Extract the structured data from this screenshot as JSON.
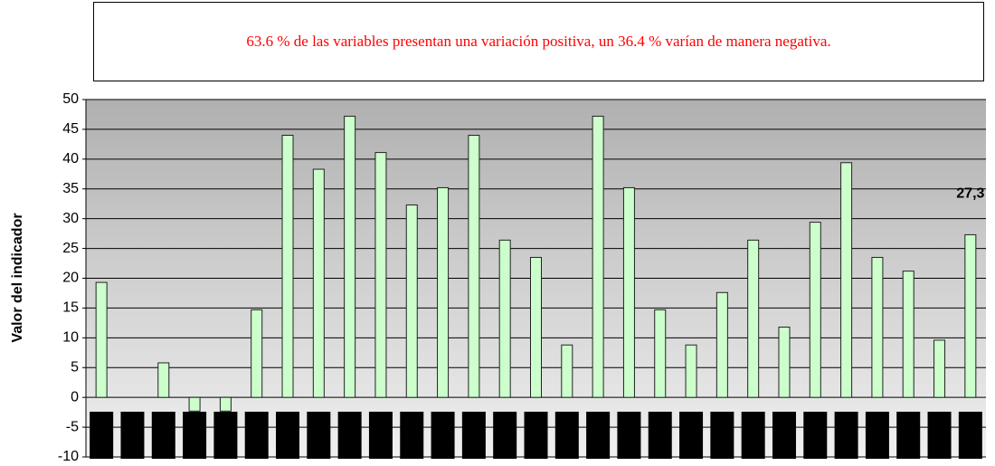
{
  "chart_data": {
    "type": "bar",
    "title": "63.6 % de las variables presentan una variación positiva, un 36.4 % varían de manera negativa.",
    "y_label": "Valor del indicador",
    "categories": [
      null,
      null,
      null,
      null,
      null,
      null,
      null,
      null,
      null,
      null,
      null,
      null,
      null,
      null,
      null,
      null,
      null,
      null,
      null,
      null,
      null,
      null,
      null,
      null,
      null,
      null,
      null,
      null,
      null
    ],
    "values": [
      19.3,
      0,
      5.8,
      -2.3,
      -2.3,
      14.7,
      44,
      38.3,
      47.2,
      41.1,
      32.3,
      35.2,
      44,
      26.4,
      23.5,
      8.8,
      47.2,
      35.2,
      14.7,
      8.8,
      17.6,
      26.4,
      11.8,
      29.4,
      39.4,
      23.5,
      21.2,
      9.6,
      27.3
    ],
    "value_labels": [
      null,
      null,
      null,
      null,
      null,
      null,
      null,
      null,
      null,
      null,
      null,
      null,
      null,
      null,
      null,
      null,
      null,
      null,
      null,
      null,
      null,
      null,
      null,
      null,
      null,
      null,
      null,
      null,
      "27,3"
    ],
    "color": "#ccffcc",
    "ylim": [
      -10,
      50
    ],
    "yticks": [
      -10,
      -5,
      0,
      5,
      10,
      15,
      20,
      25,
      30,
      35,
      40,
      45,
      50
    ],
    "grid": true
  }
}
